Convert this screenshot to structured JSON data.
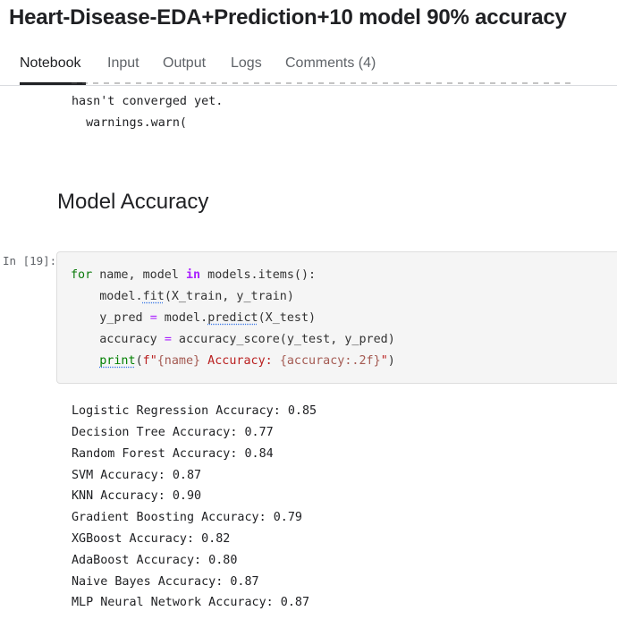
{
  "notebook": {
    "title": "Heart-Disease-EDA+Prediction+10 model 90% accuracy"
  },
  "tabs": [
    {
      "label": "Notebook"
    },
    {
      "label": "Input"
    },
    {
      "label": "Output"
    },
    {
      "label": "Logs"
    },
    {
      "label": "Comments (4)"
    }
  ],
  "previous_output": {
    "lines": [
      "hasn't converged yet.",
      "  warnings.warn("
    ]
  },
  "section": {
    "heading": "Model Accuracy"
  },
  "cell": {
    "prompt": "In [19]:",
    "code": {
      "l1_for": "for",
      "l1_a": " name, model ",
      "l1_in": "in",
      "l1_b": " models.items():",
      "l2_a": "    model.",
      "l2_fit": "fit",
      "l2_b": "(X_train, y_train)",
      "l3_a": "    y_pred ",
      "l3_eq": "=",
      "l3_b": " model.",
      "l3_predict": "predict",
      "l3_c": "(X_test)",
      "l4_a": "    accuracy ",
      "l4_eq": "=",
      "l4_b": " accuracy_score(y_test, y_pred)",
      "l5_indent": "    ",
      "l5_print": "print",
      "l5_paren": "(",
      "l5_f": "f",
      "l5_q1": "\"",
      "l5_name": "{name}",
      "l5_mid": " Accuracy: ",
      "l5_acc": "{accuracy:.2f}",
      "l5_q2": "\"",
      "l5_close": ")"
    },
    "output": [
      "Logistic Regression Accuracy: 0.85",
      "Decision Tree Accuracy: 0.77",
      "Random Forest Accuracy: 0.84",
      "SVM Accuracy: 0.87",
      "KNN Accuracy: 0.90",
      "Gradient Boosting Accuracy: 0.79",
      "XGBoost Accuracy: 0.82",
      "AdaBoost Accuracy: 0.80",
      "Naive Bayes Accuracy: 0.87",
      "MLP Neural Network Accuracy: 0.87"
    ]
  }
}
